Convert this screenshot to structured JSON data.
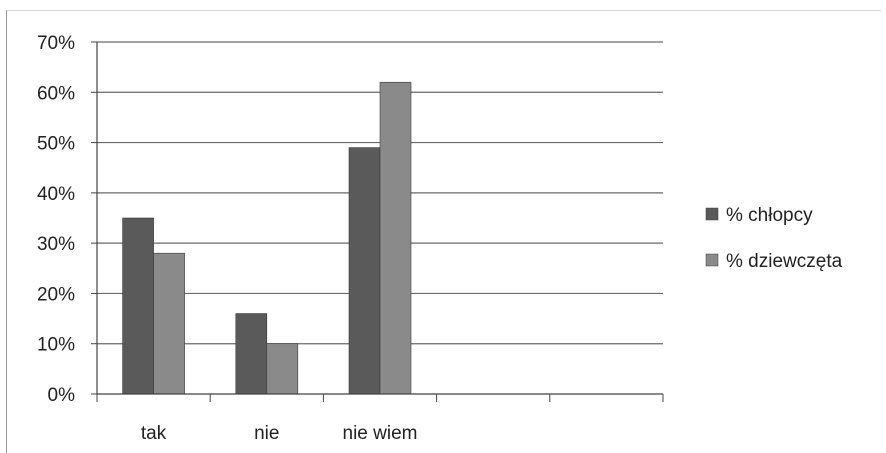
{
  "chart_data": {
    "type": "bar",
    "categories": [
      "tak",
      "nie",
      "nie wiem",
      "",
      ""
    ],
    "series": [
      {
        "name": "% chłopcy",
        "values": [
          35,
          16,
          49,
          null,
          null
        ],
        "color": "#5a5a5a"
      },
      {
        "name": "% dziewczęta",
        "values": [
          28,
          10,
          62,
          null,
          null
        ],
        "color": "#8a8a8a"
      }
    ],
    "yticks": [
      "0%",
      "10%",
      "20%",
      "30%",
      "40%",
      "50%",
      "60%",
      "70%"
    ],
    "ylim": [
      0,
      70
    ],
    "ystep": 10,
    "grid": true,
    "legend_position": "right",
    "title": "",
    "xlabel": "",
    "ylabel": ""
  }
}
